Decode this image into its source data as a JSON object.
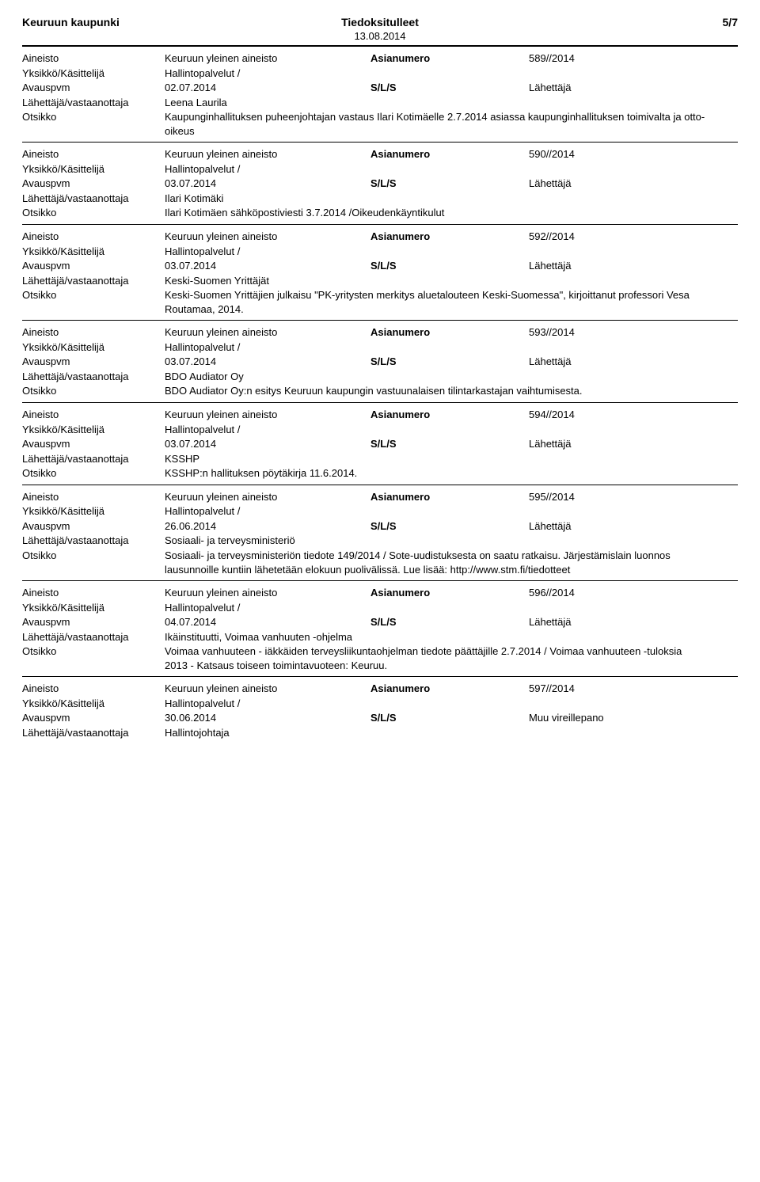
{
  "header": {
    "left": "Keuruun kaupunki",
    "center": "Tiedoksitulleet",
    "right": "5/7",
    "date": "13.08.2014"
  },
  "labels": {
    "aineisto": "Aineisto",
    "asianumero": "Asianumero",
    "yksikko": "Yksikkö/Käsittelijä",
    "avauspvm": "Avauspvm",
    "sls": "S/L/S",
    "lahettaja": "Lähettäjä/vastaanottaja",
    "otsikko": "Otsikko"
  },
  "sls_value": "Lähettäjä",
  "muu": "Muu vireillepano",
  "aineisto_value": "Keuruun yleinen aineisto",
  "yksikko_value": "Hallintopalvelut /",
  "records": [
    {
      "asianumero": "589//2014",
      "avauspvm": "02.07.2014",
      "sls_right": "Lähettäjä",
      "lahettaja": "Leena Laurila",
      "otsikko": "Kaupunginhallituksen puheenjohtajan vastaus Ilari Kotimäelle 2.7.2014 asiassa kaupunginhallituksen toimivalta ja otto-oikeus"
    },
    {
      "asianumero": "590//2014",
      "avauspvm": "03.07.2014",
      "sls_right": "Lähettäjä",
      "lahettaja": "Ilari Kotimäki",
      "otsikko": "Ilari Kotimäen sähköpostiviesti 3.7.2014 /Oikeudenkäyntikulut"
    },
    {
      "asianumero": "592//2014",
      "avauspvm": "03.07.2014",
      "sls_right": "Lähettäjä",
      "lahettaja": "Keski-Suomen Yrittäjät",
      "otsikko": "Keski-Suomen Yrittäjien julkaisu \"PK-yritysten merkitys aluetalouteen Keski-Suomessa\", kirjoittanut professori Vesa Routamaa, 2014."
    },
    {
      "asianumero": "593//2014",
      "avauspvm": "03.07.2014",
      "sls_right": "Lähettäjä",
      "lahettaja": "BDO Audiator Oy",
      "otsikko": "BDO Audiator Oy:n esitys Keuruun kaupungin vastuunalaisen tilintarkastajan vaihtumisesta."
    },
    {
      "asianumero": "594//2014",
      "avauspvm": "03.07.2014",
      "sls_right": "Lähettäjä",
      "lahettaja": "KSSHP",
      "otsikko": "KSSHP:n hallituksen pöytäkirja 11.6.2014."
    },
    {
      "asianumero": "595//2014",
      "avauspvm": "26.06.2014",
      "sls_right": "Lähettäjä",
      "lahettaja": "Sosiaali- ja terveysministeriö",
      "otsikko": "Sosiaali- ja terveysministeriön tiedote 149/2014 / Sote-uudistuksesta on saatu ratkaisu. Järjestämislain luonnos lausunnoille kuntiin lähetetään elokuun puolivälissä. Lue lisää: http://www.stm.fi/tiedotteet"
    },
    {
      "asianumero": "596//2014",
      "avauspvm": "04.07.2014",
      "sls_right": "Lähettäjä",
      "lahettaja": "Ikäinstituutti, Voimaa vanhuuten -ohjelma",
      "otsikko": "Voimaa vanhuuteen - iäkkäiden terveysliikuntaohjelman tiedote päättäjille 2.7.2014 / Voimaa vanhuuteen -tuloksia 2013 - Katsaus toiseen toimintavuoteen: Keuruu."
    },
    {
      "asianumero": "597//2014",
      "avauspvm": "30.06.2014",
      "sls_right": "Muu vireillepano",
      "lahettaja": "Hallintojohtaja",
      "otsikko": null
    }
  ]
}
